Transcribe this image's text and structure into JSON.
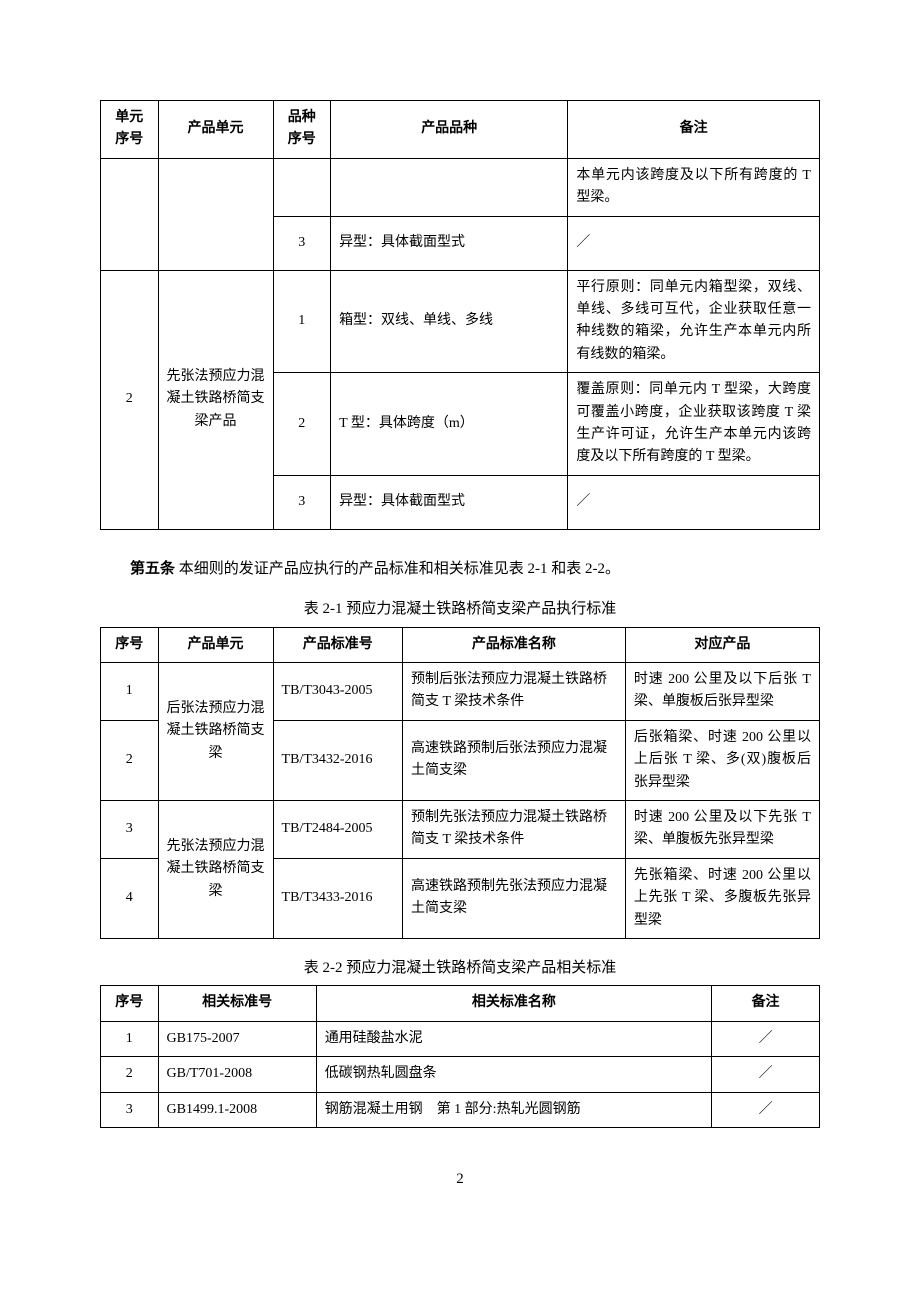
{
  "table1": {
    "headers": [
      "单元序号",
      "产品单元",
      "品种序号",
      "产品品种",
      "备注"
    ],
    "rows": [
      {
        "unit_no": "",
        "unit": "",
        "var_no": "",
        "variety": "",
        "remark": "本单元内该跨度及以下所有跨度的 T 型梁。"
      },
      {
        "unit_no": "",
        "unit": "",
        "var_no": "3",
        "variety": "异型：具体截面型式",
        "remark": "／"
      },
      {
        "unit_no": "2",
        "unit": "先张法预应力混凝土铁路桥简支梁产品",
        "var_no": "1",
        "variety": "箱型：双线、单线、多线",
        "remark": "平行原则：同单元内箱型梁，双线、单线、多线可互代，企业获取任意一种线数的箱梁，允许生产本单元内所有线数的箱梁。"
      },
      {
        "unit_no": "",
        "unit": "",
        "var_no": "2",
        "variety": "T 型：具体跨度（m）",
        "remark": "覆盖原则：同单元内 T 型梁，大跨度可覆盖小跨度，企业获取该跨度 T 梁生产许可证，允许生产本单元内该跨度及以下所有跨度的 T 型梁。"
      },
      {
        "unit_no": "",
        "unit": "",
        "var_no": "3",
        "variety": "异型：具体截面型式",
        "remark": "／"
      }
    ]
  },
  "article5": {
    "label": "第五条",
    "text": " 本细则的发证产品应执行的产品标准和相关标准见表 2-1 和表 2-2。"
  },
  "table2": {
    "caption": "表 2-1 预应力混凝土铁路桥简支梁产品执行标准",
    "headers": [
      "序号",
      "产品单元",
      "产品标准号",
      "产品标准名称",
      "对应产品"
    ],
    "rows": [
      {
        "no": "1",
        "unit": "后张法预应力混凝土铁路桥简支梁",
        "std_no": "TB/T3043-2005",
        "std_name": "预制后张法预应力混凝土铁路桥简支 T 梁技术条件",
        "product": "时速 200 公里及以下后张 T 梁、单腹板后张异型梁"
      },
      {
        "no": "2",
        "unit": "",
        "std_no": "TB/T3432-2016",
        "std_name": "高速铁路预制后张法预应力混凝土简支梁",
        "product": "后张箱梁、时速 200 公里以上后张 T 梁、多(双)腹板后张异型梁"
      },
      {
        "no": "3",
        "unit": "先张法预应力混凝土铁路桥简支梁",
        "std_no": "TB/T2484-2005",
        "std_name": "预制先张法预应力混凝土铁路桥简支 T 梁技术条件",
        "product": "时速 200 公里及以下先张 T 梁、单腹板先张异型梁"
      },
      {
        "no": "4",
        "unit": "",
        "std_no": "TB/T3433-2016",
        "std_name": "高速铁路预制先张法预应力混凝土简支梁",
        "product": "先张箱梁、时速 200 公里以上先张 T 梁、多腹板先张异型梁"
      }
    ]
  },
  "table3": {
    "caption": "表 2-2 预应力混凝土铁路桥简支梁产品相关标准",
    "headers": [
      "序号",
      "相关标准号",
      "相关标准名称",
      "备注"
    ],
    "rows": [
      {
        "no": "1",
        "std_no": "GB175-2007",
        "std_name": "通用硅酸盐水泥",
        "remark": "／"
      },
      {
        "no": "2",
        "std_no": "GB/T701-2008",
        "std_name": "低碳钢热轧圆盘条",
        "remark": "／"
      },
      {
        "no": "3",
        "std_no": "GB1499.1-2008",
        "std_name": "钢筋混凝土用钢　第 1 部分:热轧光圆钢筋",
        "remark": "／"
      }
    ]
  },
  "page_number": "2"
}
